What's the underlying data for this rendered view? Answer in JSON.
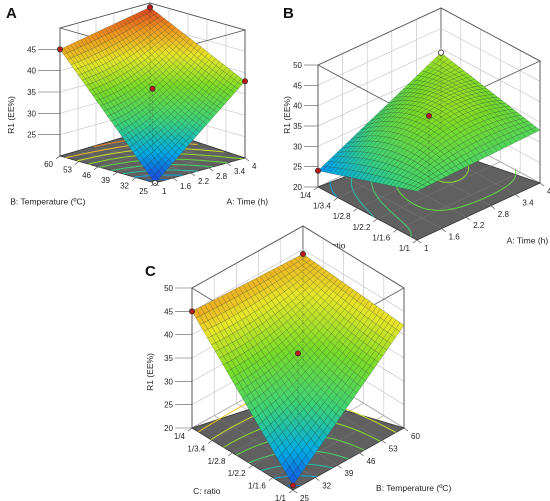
{
  "chart_data": [
    {
      "type": "surface",
      "panel": "A",
      "response_label": "R1 (EE%)",
      "x_axis": {
        "label": "A: Time (h)",
        "ticks": [
          "1",
          "1.6",
          "2.2",
          "2.8",
          "3.4",
          "4"
        ],
        "range": [
          1,
          4
        ]
      },
      "y_axis": {
        "label": "B: Temperature (ºC)",
        "ticks": [
          "25",
          "32",
          "39",
          "46",
          "53",
          "60"
        ],
        "range": [
          25,
          60
        ]
      },
      "z_axis": {
        "ticks": [
          "25",
          "30",
          "35",
          "40",
          "45"
        ],
        "range": [
          20,
          50
        ]
      },
      "corner_values": {
        "x_min_y_min": 20,
        "x_max_y_min": 38,
        "x_min_y_max": 45,
        "x_max_y_max": 49
      },
      "center_value": 36,
      "design_points": [
        {
          "x": 1,
          "y": 60,
          "z": 45,
          "color": "red"
        },
        {
          "x": 4,
          "y": 60,
          "z": 49,
          "color": "red"
        },
        {
          "x": 4,
          "y": 25,
          "z": 38,
          "color": "red"
        },
        {
          "x": 2.5,
          "y": 42.5,
          "z": 36,
          "color": "red"
        },
        {
          "x": 1,
          "y": 25,
          "z": 20,
          "color": "white"
        }
      ]
    },
    {
      "type": "surface",
      "panel": "B",
      "response_label": "R1 (EE%)",
      "x_axis": {
        "label": "A: Time (h)",
        "ticks": [
          "1",
          "1.6",
          "2.2",
          "2.8",
          "3.4",
          "4"
        ],
        "range": [
          1,
          4
        ]
      },
      "y_axis": {
        "label": "C: ratio",
        "ticks": [
          "1/1",
          "1/1.6",
          "1/2.2",
          "1/2.8",
          "1/3.4",
          "1/4"
        ],
        "range": [
          1,
          4
        ]
      },
      "z_axis": {
        "ticks": [
          "20",
          "25",
          "30",
          "35",
          "40",
          "45",
          "50"
        ],
        "range": [
          20,
          50
        ]
      },
      "corner_values": {
        "x_min_y_min": 32,
        "x_max_y_min": 33,
        "x_min_y_max": 24,
        "x_max_y_max": 39
      },
      "center_value": 37,
      "design_points": [
        {
          "x": 1,
          "y": 4,
          "z": 24,
          "color": "red"
        },
        {
          "x": 4,
          "y": 4,
          "z": 39,
          "color": "white"
        },
        {
          "x": 2.5,
          "y": 2.5,
          "z": 37,
          "color": "red"
        }
      ]
    },
    {
      "type": "surface",
      "panel": "C",
      "response_label": "R1 (EE%)",
      "x_axis": {
        "label": "B: Temperature (ºC)",
        "ticks": [
          "25",
          "32",
          "39",
          "46",
          "53",
          "60"
        ],
        "range": [
          25,
          60
        ]
      },
      "y_axis": {
        "label": "C: ratio",
        "ticks": [
          "1/1",
          "1/1.6",
          "1/2.2",
          "1/2.8",
          "1/3.4",
          "1/4"
        ],
        "range": [
          1,
          4
        ]
      },
      "z_axis": {
        "ticks": [
          "20",
          "25",
          "30",
          "35",
          "40",
          "45",
          "50"
        ],
        "range": [
          20,
          50
        ]
      },
      "corner_values": {
        "x_min_y_min": 21,
        "x_max_y_min": 42,
        "x_min_y_max": 45,
        "x_max_y_max": 44
      },
      "center_value": 36,
      "design_points": [
        {
          "x": 25,
          "y": 4,
          "z": 45,
          "color": "red"
        },
        {
          "x": 60,
          "y": 4,
          "z": 44,
          "color": "red"
        },
        {
          "x": 25,
          "y": 1,
          "z": 21,
          "color": "red"
        },
        {
          "x": 42.5,
          "y": 2.5,
          "z": 36,
          "color": "red"
        }
      ]
    }
  ]
}
